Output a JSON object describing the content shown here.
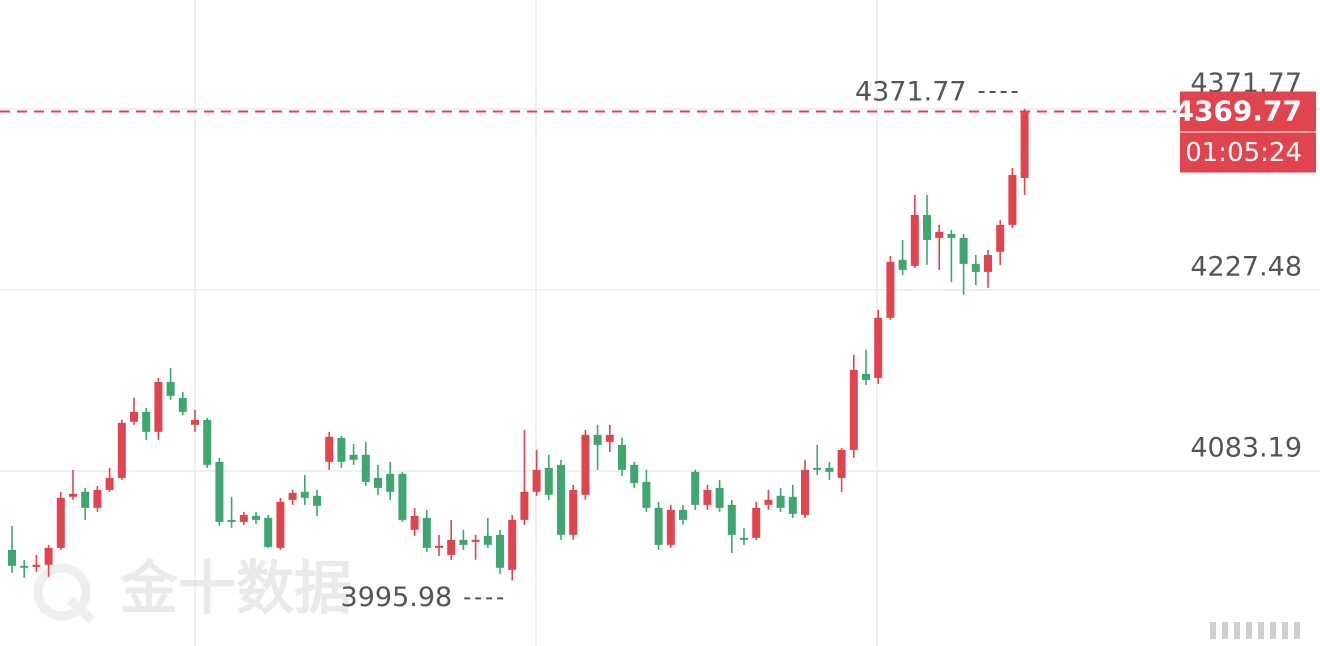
{
  "chart_data": {
    "type": "candlestick",
    "watermark": "金十数据",
    "open": [
      4020.3,
      4007.6,
      4006.8,
      4008.4,
      4021.9,
      4062.6,
      4066.6,
      4053.8,
      4068.1,
      4077.7,
      4122.4,
      4130.3,
      4114.4,
      4154.2,
      4141.5,
      4120.0,
      4123.9,
      4090.5,
      4044.2,
      4042.6,
      4047.4,
      4045.8,
      4021.9,
      4060.2,
      4066.6,
      4063.4,
      4090.5,
      4109.6,
      4096.1,
      4096.1,
      4077.7,
      4080.9,
      4080.9,
      4036.3,
      4045.8,
      4021.9,
      4016.3,
      4028.3,
      4026.7,
      4031.5,
      4032.3,
      4004.4,
      4044.2,
      4066.6,
      4085.7,
      4088.1,
      4032.3,
      4064.2,
      4112.0,
      4106.4,
      4104.0,
      4088.1,
      4074.5,
      4053.8,
      4024.3,
      4052.2,
      4082.5,
      4056.2,
      4069.7,
      4056.2,
      4029.9,
      4029.9,
      4056.2,
      4063.4,
      4062.6,
      4048.2,
      4085.7,
      4085.7,
      4077.7,
      4100.0,
      4160.6,
      4157.4,
      4205.3,
      4251.5,
      4246.7,
      4287.3,
      4269.0,
      4272.2,
      4269.0,
      4248.3,
      4241.9,
      4257.9,
      4279.4,
      4316.8
    ],
    "high": [
      4039.5,
      4012.4,
      4016.3,
      4024.3,
      4066.6,
      4084.1,
      4069.7,
      4071.3,
      4085.7,
      4123.9,
      4141.5,
      4133.5,
      4157.4,
      4165.4,
      4146.3,
      4131.9,
      4125.5,
      4093.7,
      4062.6,
      4050.6,
      4050.6,
      4048.2,
      4061.8,
      4068.1,
      4080.1,
      4068.1,
      4114.4,
      4111.2,
      4104.8,
      4106.4,
      4088.1,
      4090.5,
      4082.5,
      4053.8,
      4052.2,
      4032.3,
      4044.2,
      4036.3,
      4032.3,
      4045.8,
      4036.3,
      4048.2,
      4116.0,
      4100.0,
      4096.1,
      4092.1,
      4072.1,
      4116.0,
      4120.0,
      4120.0,
      4109.6,
      4090.5,
      4084.1,
      4058.6,
      4056.2,
      4056.2,
      4084.1,
      4072.1,
      4076.1,
      4060.2,
      4037.9,
      4058.6,
      4068.1,
      4069.7,
      4072.1,
      4092.1,
      4104.0,
      4090.5,
      4101.6,
      4175.8,
      4179.8,
      4211.6,
      4254.6,
      4267.4,
      4303.3,
      4303.3,
      4279.4,
      4275.4,
      4272.2,
      4255.4,
      4259.4,
      4283.4,
      4324.8,
      4371.77
    ],
    "low": [
      4002.0,
      3998.0,
      4002.8,
      3998.8,
      4020.3,
      4060.2,
      4044.2,
      4050.6,
      4066.6,
      4076.1,
      4120.0,
      4108.0,
      4108.0,
      4139.9,
      4127.9,
      4114.4,
      4085.7,
      4039.5,
      4037.9,
      4040.3,
      4041.0,
      4021.9,
      4020.3,
      4056.2,
      4056.2,
      4047.4,
      4084.1,
      4085.7,
      4088.1,
      4071.3,
      4064.2,
      4060.2,
      4042.6,
      4031.5,
      4018.7,
      4015.5,
      4012.4,
      4020.3,
      4012.4,
      4021.9,
      4001.2,
      3995.98,
      4040.3,
      4063.4,
      4060.2,
      4028.3,
      4028.3,
      4060.2,
      4084.1,
      4098.4,
      4079.3,
      4069.7,
      4050.6,
      4020.3,
      4021.9,
      4040.3,
      4052.2,
      4052.2,
      4050.6,
      4017.9,
      4024.3,
      4028.3,
      4052.2,
      4050.6,
      4045.8,
      4045.8,
      4080.1,
      4076.1,
      4066.6,
      4093.7,
      4151.9,
      4152.7,
      4203.7,
      4239.5,
      4245.1,
      4247.5,
      4243.5,
      4233.9,
      4223.6,
      4231.5,
      4229.2,
      4247.5,
      4277.0,
      4303.3
    ],
    "close": [
      4007.6,
      4006.0,
      4008.4,
      4021.9,
      4061.8,
      4065.0,
      4053.8,
      4068.1,
      4077.7,
      4121.6,
      4130.3,
      4114.4,
      4154.2,
      4143.1,
      4130.3,
      4123.9,
      4088.1,
      4042.6,
      4042.6,
      4048.2,
      4044.2,
      4022.7,
      4058.6,
      4065.8,
      4061.8,
      4055.4,
      4110.4,
      4090.5,
      4092.1,
      4074.5,
      4069.7,
      4066.6,
      4044.2,
      4047.4,
      4021.9,
      4023.5,
      4028.3,
      4024.3,
      4028.3,
      4024.3,
      4006.0,
      4044.2,
      4066.6,
      4084.1,
      4064.2,
      4032.3,
      4068.1,
      4112.0,
      4104.0,
      4112.0,
      4084.1,
      4073.7,
      4053.8,
      4024.3,
      4052.2,
      4044.2,
      4056.2,
      4068.1,
      4053.8,
      4032.3,
      4028.3,
      4053.8,
      4060.2,
      4053.8,
      4049.0,
      4084.1,
      4084.1,
      4082.5,
      4100.0,
      4163.8,
      4155.8,
      4205.3,
      4249.9,
      4243.5,
      4287.3,
      4267.4,
      4273.8,
      4269.0,
      4248.3,
      4241.9,
      4255.4,
      4279.4,
      4319.2,
      4369.77
    ],
    "up_color": "#e0454f",
    "down_color": "#3ea66f",
    "ylim": [
      3943.68,
      4458.66
    ],
    "yticks": [
      4083.19,
      4227.48,
      4371.77
    ],
    "grid": true,
    "max_marker": 4371.77,
    "min_marker": 3995.98,
    "last_price": 4369.77,
    "countdown": "01:05:24"
  }
}
